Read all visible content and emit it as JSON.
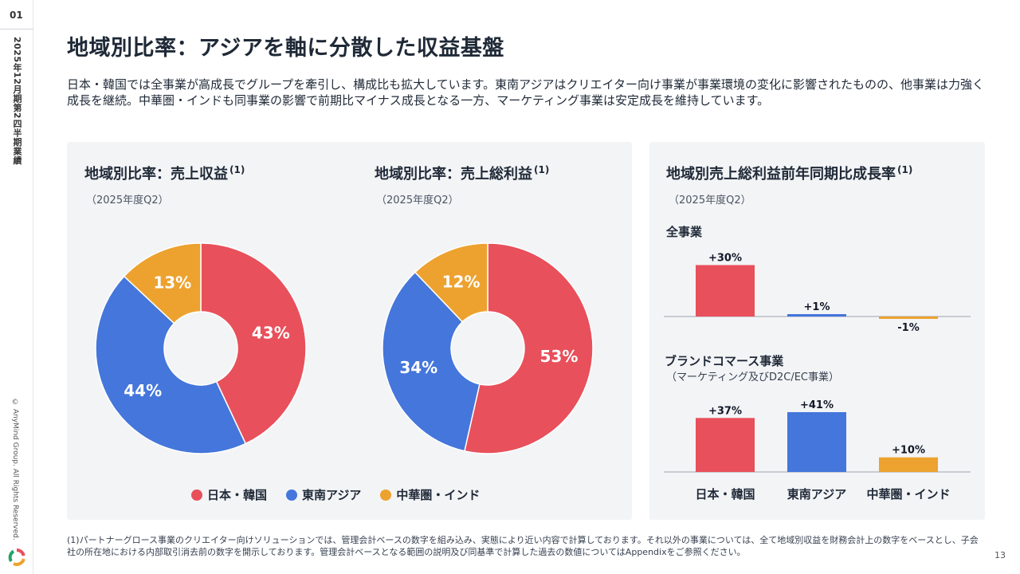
{
  "sidebar": {
    "section_number": "01",
    "period": "2025年12月期第2四半期業績",
    "copyright": "© AnyMind Group. All Rights Reserved."
  },
  "title": "地域別比率：アジアを軸に分散した収益基盤",
  "lead": "日本・韓国では全事業が高成長でグループを牽引し、構成比も拡大しています。東南アジアはクリエイター向け事業が事業環境の変化に影響されたものの、他事業は力強く成長を継続。中華圏・インドも同事業の影響で前期比マイナス成長となる一方、マーケティング事業は安定成長を維持しています。",
  "colors": {
    "japan_korea": "#e8505b",
    "southeast_asia": "#4476db",
    "china_india": "#eda22f"
  },
  "chart_data": [
    {
      "type": "pie",
      "title": "地域別比率：売上収益",
      "note_marker": "(1)",
      "subtitle": "（2025年度Q2）",
      "categories": [
        "日本・韓国",
        "東南アジア",
        "中華圏・インド"
      ],
      "values": [
        43,
        44,
        13
      ],
      "labels": [
        "43%",
        "44%",
        "13%"
      ]
    },
    {
      "type": "pie",
      "title": "地域別比率：売上総利益",
      "note_marker": "(1)",
      "subtitle": "（2025年度Q2）",
      "categories": [
        "日本・韓国",
        "東南アジア",
        "中華圏・インド"
      ],
      "values": [
        53,
        34,
        12
      ],
      "labels": [
        "53%",
        "34%",
        "12%"
      ]
    },
    {
      "type": "bar",
      "title": "地域別売上総利益前年同期比成長率",
      "note_marker": "(1)",
      "subtitle": "（2025年度Q2）",
      "categories": [
        "日本・韓国",
        "東南アジア",
        "中華圏・インド"
      ],
      "series": [
        {
          "name": "全事業",
          "values": [
            30,
            1,
            -1
          ],
          "labels": [
            "+30%",
            "+1%",
            "-1%"
          ]
        },
        {
          "name": "ブランドコマース事業",
          "subname": "（マーケティング及びD2C/EC事業）",
          "values": [
            37,
            41,
            10
          ],
          "labels": [
            "+37%",
            "+41%",
            "+10%"
          ]
        }
      ]
    }
  ],
  "legend": [
    "日本・韓国",
    "東南アジア",
    "中華圏・インド"
  ],
  "footnote": "(1)パートナーグロース事業のクリエイター向けソリューションでは、管理会計ベースの数字を組み込み、実態により近い内容で計算しております。それ以外の事業については、全て地域別収益を財務会計上の数字をベースとし、子会社の所在地における内部取引消去前の数字を開示しております。管理会計ベースとなる範囲の説明及び同基準で計算した過去の数値についてはAppendixをご参照ください。",
  "page_number": "13"
}
